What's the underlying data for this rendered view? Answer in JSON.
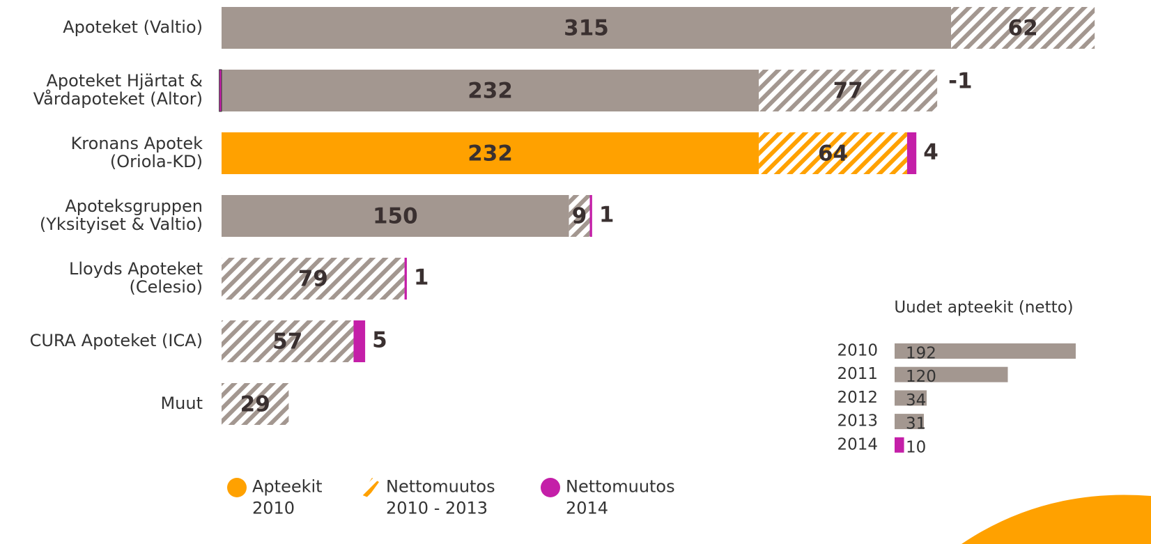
{
  "chart_data": {
    "type": "bar",
    "orientation": "horizontal",
    "stacked": true,
    "categories": [
      "Apoteket (Valtio)",
      "Apoteket Hjärtat &\nVårdapoteket (Altor)",
      "Kronans Apotek\n(Oriola-KD)",
      "Apoteksgruppen\n(Yksityiset & Valtio)",
      "Lloyds Apoteket\n(Celesio)",
      "CURA Apoteket (ICA)",
      "Muut"
    ],
    "series": [
      {
        "name": "Apteekit\n2010",
        "color": "#ffa100",
        "colors": [
          "#a39790",
          "#a39790",
          "#ffa100",
          "#a39790",
          "#a39790",
          "#a39790",
          "#a39790"
        ],
        "hatch": false,
        "values": [
          315,
          232,
          232,
          150,
          null,
          null,
          null
        ]
      },
      {
        "name": "Nettomuutos\n2010 - 2013",
        "color": "#ffa100",
        "colors": [
          "#a39790",
          "#a39790",
          "#ffa100",
          "#a39790",
          "#a39790",
          "#a39790",
          "#a39790"
        ],
        "hatch": true,
        "values": [
          62,
          77,
          64,
          9,
          79,
          57,
          29
        ]
      },
      {
        "name": "Nettomuutos\n2014",
        "color": "#c41fa8",
        "hatch": false,
        "values": [
          null,
          -1,
          4,
          1,
          1,
          5,
          null
        ]
      }
    ],
    "inset": {
      "type": "bar",
      "title": "Uudet apteekit (netto)",
      "categories": [
        "2010",
        "2011",
        "2012",
        "2013",
        "2014"
      ],
      "values": [
        192,
        120,
        34,
        31,
        10
      ],
      "colors": [
        "#a39790",
        "#a39790",
        "#a39790",
        "#a39790",
        "#c41fa8"
      ]
    }
  }
}
